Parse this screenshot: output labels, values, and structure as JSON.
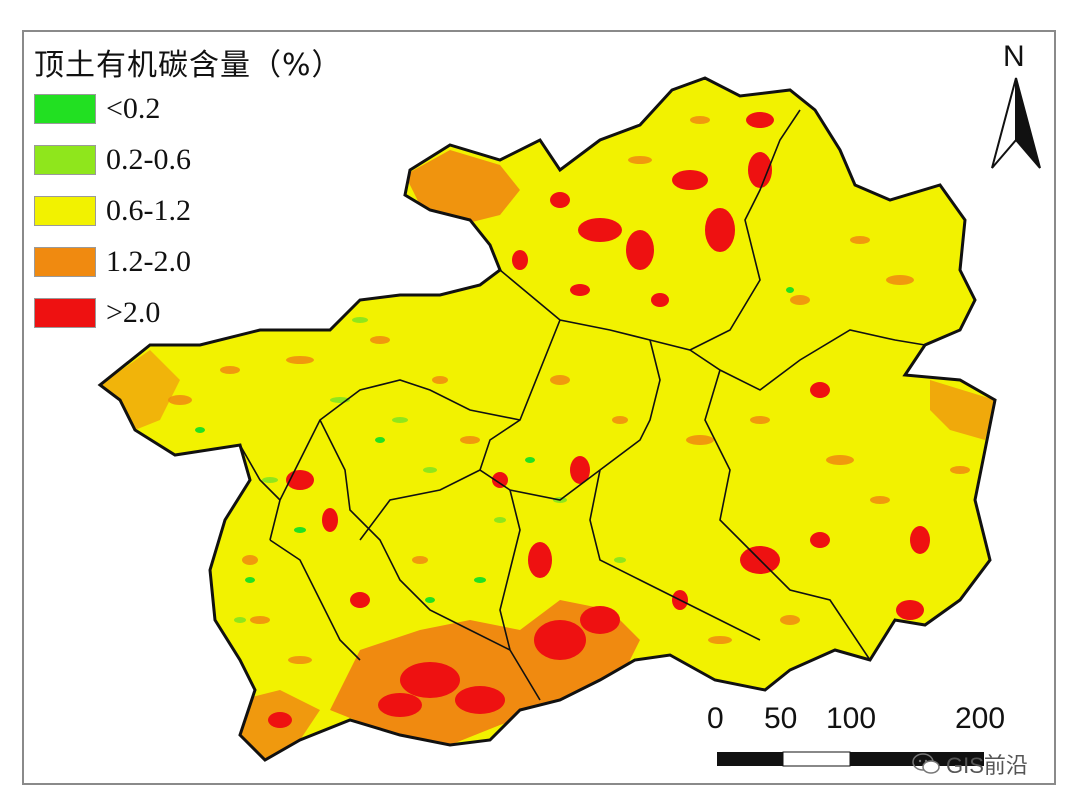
{
  "legend": {
    "title": "顶土有机碳含量（%）",
    "items": [
      {
        "label": "<0.2",
        "color": "#22e022"
      },
      {
        "label": "0.2-0.6",
        "color": "#8fe61c"
      },
      {
        "label": "0.6-1.2",
        "color": "#f2f200"
      },
      {
        "label": "1.2-2.0",
        "color": "#f08a10"
      },
      {
        "label": ">2.0",
        "color": "#ee1111"
      }
    ]
  },
  "north_arrow": {
    "label": "N"
  },
  "scale_bar": {
    "labels": [
      "0",
      "50",
      "100",
      "200"
    ]
  },
  "watermark": {
    "text": "GIS前沿",
    "icon": "wechat-icon"
  },
  "colors": {
    "boundary": "#111111",
    "background": "#ffffff"
  }
}
